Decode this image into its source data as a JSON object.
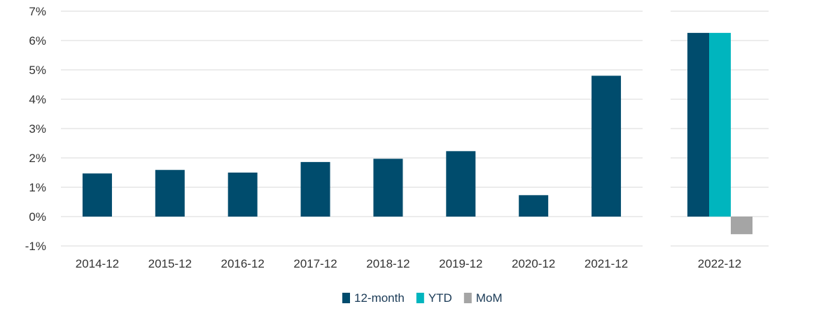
{
  "chart_data": {
    "type": "bar",
    "grid": true,
    "legend_position": "bottom-center",
    "y_unit": "%",
    "ylim": [
      -1,
      7
    ],
    "yticks": [
      -1,
      0,
      1,
      2,
      3,
      4,
      5,
      6,
      7
    ],
    "ytick_labels": [
      "-1%",
      "0%",
      "1%",
      "2%",
      "3%",
      "4%",
      "5%",
      "6%",
      "7%"
    ],
    "categories": [
      "2014-12",
      "2015-12",
      "2016-12",
      "2017-12",
      "2018-12",
      "2019-12",
      "2020-12",
      "2021-12",
      "2022-12"
    ],
    "series": [
      {
        "name": "12-month",
        "color": "#004c6d",
        "values": [
          1.47,
          1.59,
          1.5,
          1.86,
          1.97,
          2.23,
          0.73,
          4.8,
          6.26
        ]
      },
      {
        "name": "YTD",
        "color": "#00b5be",
        "values": [
          null,
          null,
          null,
          null,
          null,
          null,
          null,
          null,
          6.26
        ]
      },
      {
        "name": "MoM",
        "color": "#a5a5a5",
        "values": [
          null,
          null,
          null,
          null,
          null,
          null,
          null,
          null,
          -0.6
        ]
      }
    ]
  }
}
